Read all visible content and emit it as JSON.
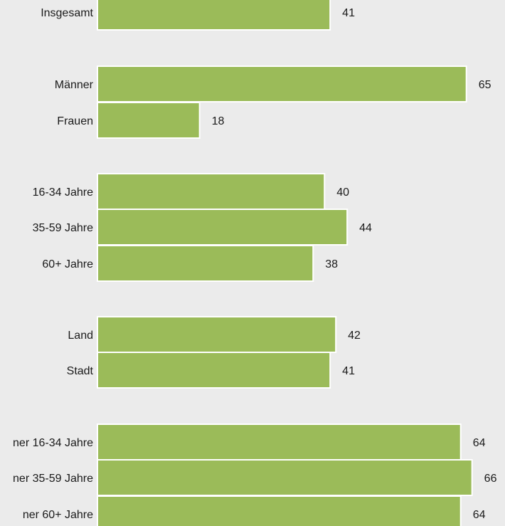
{
  "chart_data": {
    "type": "bar",
    "orientation": "horizontal",
    "bar_color": "#9bbb59",
    "bar_border_color": "#ffffff",
    "background_color": "#ebebeb",
    "xlim": [
      0,
      70
    ],
    "grid": false,
    "title": "",
    "xlabel": "",
    "ylabel": "",
    "categories": [
      "Insgesamt",
      "Männer",
      "Frauen",
      "16-34 Jahre",
      "35-59 Jahre",
      "60+ Jahre",
      "Land",
      "Stadt",
      "ner 16-34 Jahre",
      "ner 35-59 Jahre",
      "ner 60+ Jahre"
    ],
    "values": [
      41,
      65,
      18,
      40,
      44,
      38,
      42,
      41,
      64,
      66,
      64
    ]
  }
}
